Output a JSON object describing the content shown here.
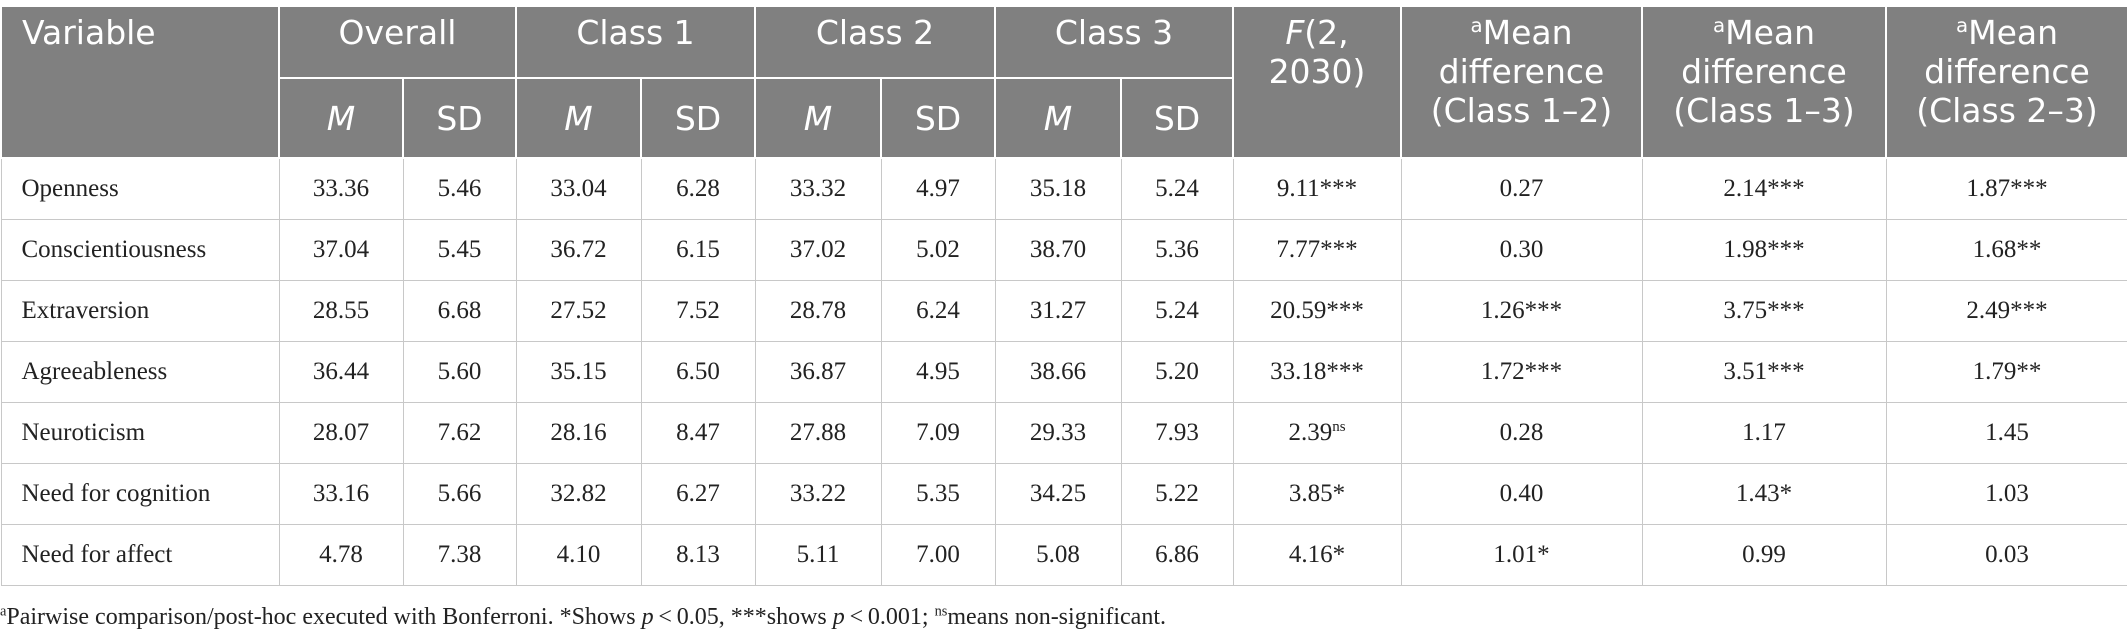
{
  "table": {
    "header": {
      "variable": "Variable",
      "groups": [
        "Overall",
        "Class 1",
        "Class 2",
        "Class 3"
      ],
      "sub": [
        "M",
        "SD",
        "M",
        "SD",
        "M",
        "SD",
        "M",
        "SD"
      ],
      "f": [
        {
          "italic": "F"
        },
        {
          "text": "(2, 2030)"
        }
      ],
      "diffs": [
        [
          {
            "sup": "a"
          },
          {
            "text": "Mean difference (Class 1–2)"
          }
        ],
        [
          {
            "sup": "a"
          },
          {
            "text": "Mean difference (Class 1–3)"
          }
        ],
        [
          {
            "sup": "a"
          },
          {
            "text": "Mean difference (Class 2–3)"
          }
        ]
      ]
    },
    "rows": [
      {
        "variable": "Openness",
        "cells": [
          "33.36",
          "5.46",
          "33.04",
          "6.28",
          "33.32",
          "4.97",
          "35.18",
          "5.24",
          "9.11***",
          "0.27",
          "2.14***",
          "1.87***"
        ]
      },
      {
        "variable": "Conscientiousness",
        "cells": [
          "37.04",
          "5.45",
          "36.72",
          "6.15",
          "37.02",
          "5.02",
          "38.70",
          "5.36",
          "7.77***",
          "0.30",
          "1.98***",
          "1.68**"
        ]
      },
      {
        "variable": "Extraversion",
        "cells": [
          "28.55",
          "6.68",
          "27.52",
          "7.52",
          "28.78",
          "6.24",
          "31.27",
          "5.24",
          "20.59***",
          "1.26***",
          "3.75***",
          "2.49***"
        ]
      },
      {
        "variable": "Agreeableness",
        "cells": [
          "36.44",
          "5.60",
          "35.15",
          "6.50",
          "36.87",
          "4.95",
          "38.66",
          "5.20",
          "33.18***",
          "1.72***",
          "3.51***",
          "1.79**"
        ]
      },
      {
        "variable": "Neuroticism",
        "cells": [
          "28.07",
          "7.62",
          "28.16",
          "8.47",
          "27.88",
          "7.09",
          "29.33",
          "7.93",
          [
            {
              "text": "2.39"
            },
            {
              "sup": "ns"
            }
          ],
          "0.28",
          "1.17",
          "1.45"
        ]
      },
      {
        "variable": "Need for cognition",
        "cells": [
          "33.16",
          "5.66",
          "32.82",
          "6.27",
          "33.22",
          "5.35",
          "34.25",
          "5.22",
          "3.85*",
          "0.40",
          "1.43*",
          "1.03"
        ]
      },
      {
        "variable": "Need for affect",
        "cells": [
          "4.78",
          "7.38",
          "4.10",
          "8.13",
          "5.11",
          "7.00",
          "5.08",
          "6.86",
          "4.16*",
          "1.01*",
          "0.99",
          "0.03"
        ]
      }
    ],
    "footnote": [
      {
        "sup": "a"
      },
      {
        "text": "Pairwise comparison/post-hoc executed with Bonferroni. *Shows "
      },
      {
        "italic": "p"
      },
      {
        "text": " < 0.05, ***shows "
      },
      {
        "italic": "p"
      },
      {
        "text": " < 0.001; "
      },
      {
        "sup": "ns"
      },
      {
        "text": "means non-significant."
      }
    ]
  }
}
